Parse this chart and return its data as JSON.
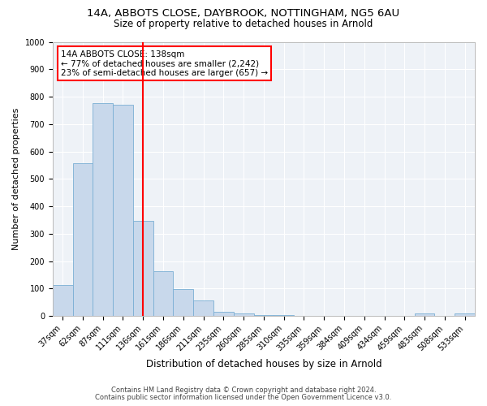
{
  "title1": "14A, ABBOTS CLOSE, DAYBROOK, NOTTINGHAM, NG5 6AU",
  "title2": "Size of property relative to detached houses in Arnold",
  "xlabel": "Distribution of detached houses by size in Arnold",
  "ylabel": "Number of detached properties",
  "bin_labels": [
    "37sqm",
    "62sqm",
    "87sqm",
    "111sqm",
    "136sqm",
    "161sqm",
    "186sqm",
    "211sqm",
    "235sqm",
    "260sqm",
    "285sqm",
    "310sqm",
    "335sqm",
    "359sqm",
    "384sqm",
    "409sqm",
    "434sqm",
    "459sqm",
    "483sqm",
    "508sqm",
    "533sqm"
  ],
  "bar_values": [
    113,
    558,
    775,
    770,
    348,
    163,
    98,
    55,
    15,
    8,
    4,
    2,
    1,
    0,
    0,
    0,
    0,
    0,
    10,
    0,
    10
  ],
  "bar_color": "#c8d8eb",
  "bar_edge_color": "#7aafd4",
  "vline_color": "red",
  "vline_x_index": 4.0,
  "annotation_title": "14A ABBOTS CLOSE: 138sqm",
  "annotation_line1": "← 77% of detached houses are smaller (2,242)",
  "annotation_line2": "23% of semi-detached houses are larger (657) →",
  "annotation_box_color": "white",
  "annotation_box_edge": "red",
  "ylim": [
    0,
    1000
  ],
  "yticks": [
    0,
    100,
    200,
    300,
    400,
    500,
    600,
    700,
    800,
    900,
    1000
  ],
  "footnote1": "Contains HM Land Registry data © Crown copyright and database right 2024.",
  "footnote2": "Contains public sector information licensed under the Open Government Licence v3.0.",
  "bg_color": "#ffffff",
  "plot_bg_color": "#eef2f7",
  "grid_color": "#ffffff",
  "title1_fontsize": 9.5,
  "title2_fontsize": 8.5,
  "ylabel_fontsize": 8,
  "xlabel_fontsize": 8.5,
  "tick_fontsize": 7,
  "annot_fontsize": 7.5,
  "footnote_fontsize": 6
}
